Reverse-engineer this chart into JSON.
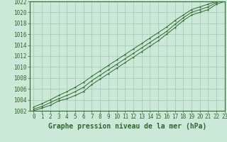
{
  "title": "Graphe pression niveau de la mer (hPa)",
  "xlabel_hours": [
    0,
    1,
    2,
    3,
    4,
    5,
    6,
    7,
    8,
    9,
    10,
    11,
    12,
    13,
    14,
    15,
    16,
    17,
    18,
    19,
    20,
    21,
    22,
    23
  ],
  "line_min": [
    1002.0,
    1002.5,
    1003.0,
    1003.8,
    1004.2,
    1004.8,
    1005.5,
    1006.8,
    1007.8,
    1008.8,
    1009.8,
    1010.8,
    1011.8,
    1012.8,
    1013.8,
    1014.8,
    1016.0,
    1017.2,
    1018.5,
    1019.5,
    1020.0,
    1020.5,
    1021.5,
    1022.0
  ],
  "line_mid": [
    1002.3,
    1002.8,
    1003.5,
    1004.2,
    1004.8,
    1005.5,
    1006.3,
    1007.5,
    1008.5,
    1009.5,
    1010.5,
    1011.5,
    1012.5,
    1013.5,
    1014.5,
    1015.5,
    1016.5,
    1017.8,
    1019.0,
    1020.0,
    1020.5,
    1021.0,
    1021.8,
    1022.3
  ],
  "line_max": [
    1002.7,
    1003.3,
    1004.0,
    1004.8,
    1005.5,
    1006.3,
    1007.2,
    1008.3,
    1009.3,
    1010.3,
    1011.3,
    1012.3,
    1013.3,
    1014.3,
    1015.3,
    1016.3,
    1017.3,
    1018.5,
    1019.5,
    1020.5,
    1021.0,
    1021.5,
    1022.0,
    1022.5
  ],
  "line_color": "#2d6a2d",
  "marker": "*",
  "bg_color": "#cce8d8",
  "grid_color": "#a0c8b0",
  "ylim": [
    1002,
    1022
  ],
  "xlim": [
    -0.5,
    23
  ],
  "yticks": [
    1002,
    1004,
    1006,
    1008,
    1010,
    1012,
    1014,
    1016,
    1018,
    1020,
    1022
  ],
  "xticks": [
    0,
    1,
    2,
    3,
    4,
    5,
    6,
    7,
    8,
    9,
    10,
    11,
    12,
    13,
    14,
    15,
    16,
    17,
    18,
    19,
    20,
    21,
    22,
    23
  ],
  "tick_fontsize": 5.5,
  "label_fontsize": 7.0,
  "label_fontweight": "bold"
}
